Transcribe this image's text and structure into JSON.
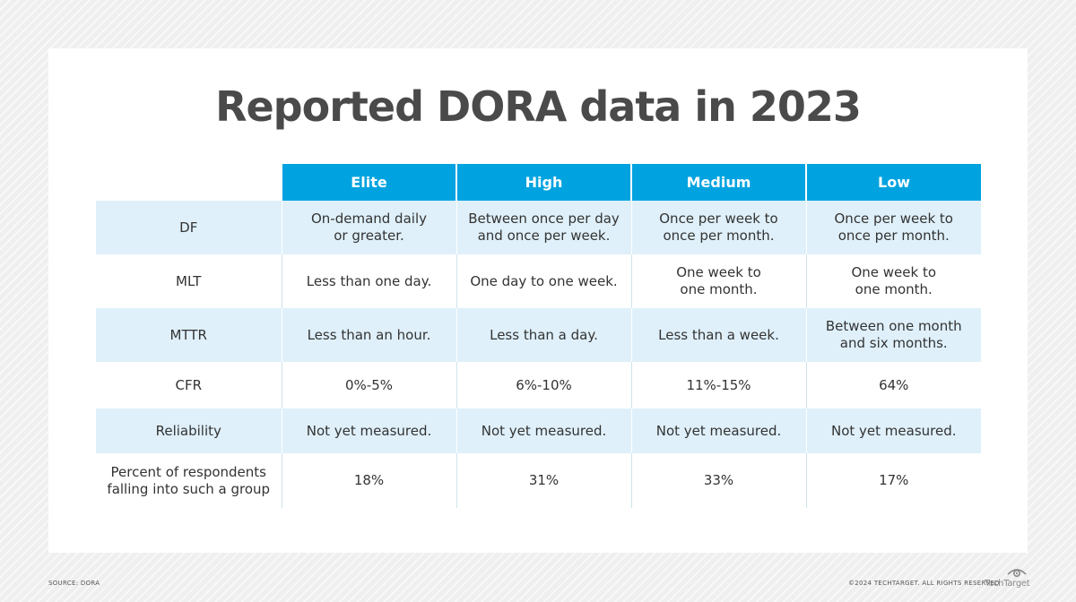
{
  "title": "Reported DORA data in 2023",
  "table": {
    "columns": [
      "Elite",
      "High",
      "Medium",
      "Low"
    ],
    "rows": [
      {
        "label": [
          "DF"
        ],
        "cells": [
          [
            "On-demand daily",
            "or greater."
          ],
          [
            "Between once per day",
            "and once per week."
          ],
          [
            "Once per week to",
            "once per month."
          ],
          [
            "Once per week to",
            "once per month."
          ]
        ]
      },
      {
        "label": [
          "MLT"
        ],
        "cells": [
          [
            "Less than one day."
          ],
          [
            "One day to one week."
          ],
          [
            "One week to",
            "one month."
          ],
          [
            "One week to",
            "one month."
          ]
        ]
      },
      {
        "label": [
          "MTTR"
        ],
        "cells": [
          [
            "Less than an hour."
          ],
          [
            "Less than a day."
          ],
          [
            "Less than a week."
          ],
          [
            "Between one month",
            "and six months."
          ]
        ]
      },
      {
        "label": [
          "CFR"
        ],
        "cells": [
          [
            "0%-5%"
          ],
          [
            "6%-10%"
          ],
          [
            "11%-15%"
          ],
          [
            "64%"
          ]
        ]
      },
      {
        "label": [
          "Reliability"
        ],
        "cells": [
          [
            "Not yet measured."
          ],
          [
            "Not yet measured."
          ],
          [
            "Not yet measured."
          ],
          [
            "Not yet measured."
          ]
        ]
      },
      {
        "label": [
          "Percent of respondents",
          "falling into such a group"
        ],
        "cells": [
          [
            "18%"
          ],
          [
            "31%"
          ],
          [
            "33%"
          ],
          [
            "17%"
          ]
        ]
      }
    ]
  },
  "footer": {
    "source": "SOURCE: DORA",
    "copyright": "©2024 TECHTARGET. ALL RIGHTS RESERVED",
    "logo_text": "TechTarget",
    "logo_icon": "eye-icon"
  },
  "colors": {
    "header": "#00a3e0",
    "shaded_row": "#dff0fa",
    "title": "#4a4a4a"
  }
}
